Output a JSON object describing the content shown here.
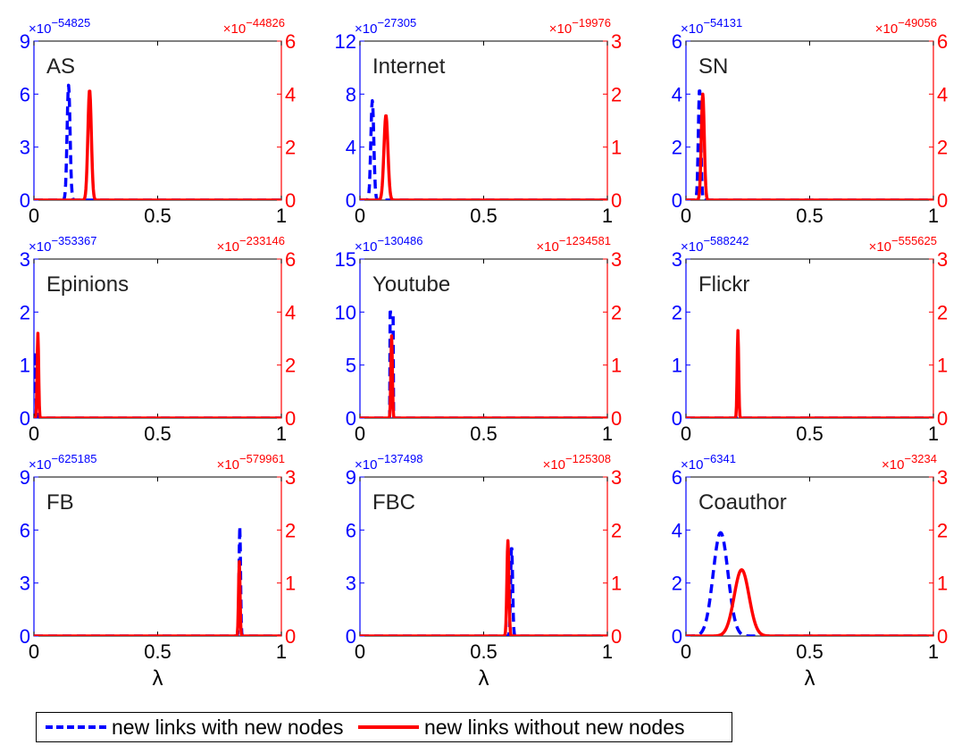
{
  "chart_data": [
    {
      "type": "line",
      "panel_label": "AS",
      "left_exp": "−54825",
      "right_exp": "−44826",
      "xlim": [
        0,
        1
      ],
      "xticks": [
        "0",
        "0.5",
        "1"
      ],
      "xlabel": "",
      "left_ylim": [
        0,
        9
      ],
      "left_yticks": [
        "0",
        "3",
        "6",
        "9"
      ],
      "right_ylim": [
        0,
        6
      ],
      "right_yticks": [
        "0",
        "2",
        "4",
        "6"
      ],
      "series": [
        {
          "axis": "left",
          "color": "#0000ff",
          "style": "dashed",
          "peak_x": 0.14,
          "peak_y": 6.5,
          "width": 0.006
        },
        {
          "axis": "right",
          "color": "#ff0000",
          "style": "solid",
          "peak_x": 0.225,
          "peak_y": 4.15,
          "width": 0.007
        }
      ]
    },
    {
      "type": "line",
      "panel_label": "Internet",
      "left_exp": "−27305",
      "right_exp": "−19976",
      "xlim": [
        0,
        1
      ],
      "xticks": [
        "0",
        "0.5",
        "1"
      ],
      "xlabel": "",
      "left_ylim": [
        0,
        12
      ],
      "left_yticks": [
        "0",
        "4",
        "8",
        "12"
      ],
      "right_ylim": [
        0,
        3
      ],
      "right_yticks": [
        "0",
        "1",
        "2",
        "3"
      ],
      "series": [
        {
          "axis": "left",
          "color": "#0000ff",
          "style": "dashed",
          "peak_x": 0.05,
          "peak_y": 7.5,
          "width": 0.006
        },
        {
          "axis": "right",
          "color": "#ff0000",
          "style": "solid",
          "peak_x": 0.105,
          "peak_y": 1.6,
          "width": 0.008
        }
      ]
    },
    {
      "type": "line",
      "panel_label": "SN",
      "left_exp": "−54131",
      "right_exp": "−49056",
      "xlim": [
        0,
        1
      ],
      "xticks": [
        "0",
        "0.5",
        "1"
      ],
      "xlabel": "",
      "left_ylim": [
        0,
        6
      ],
      "left_yticks": [
        "0",
        "2",
        "4",
        "6"
      ],
      "right_ylim": [
        0,
        6
      ],
      "right_yticks": [
        "0",
        "2",
        "4",
        "6"
      ],
      "series": [
        {
          "axis": "left",
          "color": "#0000ff",
          "style": "dashed",
          "peak_x": 0.055,
          "peak_y": 4.2,
          "width": 0.005
        },
        {
          "axis": "right",
          "color": "#ff0000",
          "style": "solid",
          "peak_x": 0.068,
          "peak_y": 4.0,
          "width": 0.006
        }
      ]
    },
    {
      "type": "line",
      "panel_label": "Epinions",
      "left_exp": "−353367",
      "right_exp": "−233146",
      "xlim": [
        0,
        1
      ],
      "xticks": [
        "0",
        "0.5",
        "1"
      ],
      "xlabel": "",
      "left_ylim": [
        0,
        3
      ],
      "left_yticks": [
        "0",
        "1",
        "2",
        "3"
      ],
      "right_ylim": [
        0,
        6
      ],
      "right_yticks": [
        "0",
        "2",
        "4",
        "6"
      ],
      "series": [
        {
          "axis": "left",
          "color": "#0000ff",
          "style": "dashed",
          "peak_x": 0.004,
          "peak_y": 1.25,
          "width": 0.003
        },
        {
          "axis": "right",
          "color": "#ff0000",
          "style": "solid",
          "peak_x": 0.016,
          "peak_y": 3.2,
          "width": 0.003
        }
      ]
    },
    {
      "type": "line",
      "panel_label": "Youtube",
      "left_exp": "−130486",
      "right_exp": "−1234581",
      "xlim": [
        0,
        1
      ],
      "xticks": [
        "0",
        "0.5",
        "1"
      ],
      "xlabel": "",
      "left_ylim": [
        0,
        15
      ],
      "left_yticks": [
        "0",
        "5",
        "10",
        "15"
      ],
      "right_ylim": [
        0,
        3
      ],
      "right_yticks": [
        "0",
        "1",
        "2",
        "3"
      ],
      "series": [
        {
          "axis": "left",
          "color": "#0000ff",
          "style": "dashed",
          "peak_x": 0.128,
          "peak_y": 10.0,
          "width": 0.008,
          "shape": "box"
        },
        {
          "axis": "right",
          "color": "#ff0000",
          "style": "solid",
          "peak_x": 0.128,
          "peak_y": 1.55,
          "width": 0.003
        }
      ]
    },
    {
      "type": "line",
      "panel_label": "Flickr",
      "left_exp": "−588242",
      "right_exp": "−555625",
      "xlim": [
        0,
        1
      ],
      "xticks": [
        "0",
        "0.5",
        "1"
      ],
      "xlabel": "",
      "left_ylim": [
        0,
        3
      ],
      "left_yticks": [
        "0",
        "1",
        "2",
        "3"
      ],
      "right_ylim": [
        0,
        3
      ],
      "right_yticks": [
        "0",
        "1",
        "2",
        "3"
      ],
      "series": [
        {
          "axis": "left",
          "color": "#0000ff",
          "style": "dashed",
          "peak_x": 0.21,
          "peak_y": 0.0,
          "width": 0.003
        },
        {
          "axis": "right",
          "color": "#ff0000",
          "style": "solid",
          "peak_x": 0.21,
          "peak_y": 1.65,
          "width": 0.003
        }
      ]
    },
    {
      "type": "line",
      "panel_label": "FB",
      "left_exp": "−625185",
      "right_exp": "−579961",
      "xlim": [
        0,
        1
      ],
      "xticks": [
        "0",
        "0.5",
        "1"
      ],
      "xlabel": "λ",
      "left_ylim": [
        0,
        9
      ],
      "left_yticks": [
        "0",
        "3",
        "6",
        "9"
      ],
      "right_ylim": [
        0,
        3
      ],
      "right_yticks": [
        "0",
        "1",
        "2",
        "3"
      ],
      "series": [
        {
          "axis": "left",
          "color": "#0000ff",
          "style": "dashed",
          "peak_x": 0.832,
          "peak_y": 6.2,
          "width": 0.003
        },
        {
          "axis": "right",
          "color": "#ff0000",
          "style": "solid",
          "peak_x": 0.83,
          "peak_y": 1.4,
          "width": 0.003
        }
      ]
    },
    {
      "type": "line",
      "panel_label": "FBC",
      "left_exp": "−137498",
      "right_exp": "−125308",
      "xlim": [
        0,
        1
      ],
      "xticks": [
        "0",
        "0.5",
        "1"
      ],
      "xlabel": "λ",
      "left_ylim": [
        0,
        9
      ],
      "left_yticks": [
        "0",
        "3",
        "6",
        "9"
      ],
      "right_ylim": [
        0,
        3
      ],
      "right_yticks": [
        "0",
        "1",
        "2",
        "3"
      ],
      "series": [
        {
          "axis": "left",
          "color": "#0000ff",
          "style": "dashed",
          "peak_x": 0.613,
          "peak_y": 5.1,
          "width": 0.004
        },
        {
          "axis": "right",
          "color": "#ff0000",
          "style": "solid",
          "peak_x": 0.598,
          "peak_y": 1.8,
          "width": 0.004
        }
      ]
    },
    {
      "type": "line",
      "panel_label": "Coauthor",
      "left_exp": "−6341",
      "right_exp": "−3234",
      "xlim": [
        0,
        1
      ],
      "xticks": [
        "0",
        "0.5",
        "1"
      ],
      "xlabel": "λ",
      "left_ylim": [
        0,
        6
      ],
      "left_yticks": [
        "0",
        "2",
        "4",
        "6"
      ],
      "right_ylim": [
        0,
        3
      ],
      "right_yticks": [
        "0",
        "1",
        "2",
        "3"
      ],
      "series": [
        {
          "axis": "left",
          "color": "#0000ff",
          "style": "dashed",
          "peak_x": 0.14,
          "peak_y": 3.9,
          "width": 0.03
        },
        {
          "axis": "right",
          "color": "#ff0000",
          "style": "solid",
          "peak_x": 0.225,
          "peak_y": 1.25,
          "width": 0.03
        }
      ]
    }
  ],
  "legend": {
    "entries": [
      {
        "label": "new links with new nodes",
        "color": "#0000ff",
        "style": "dashed"
      },
      {
        "label": "new links without new nodes",
        "color": "#ff0000",
        "style": "solid"
      }
    ]
  },
  "multiplier_prefix": "×10"
}
